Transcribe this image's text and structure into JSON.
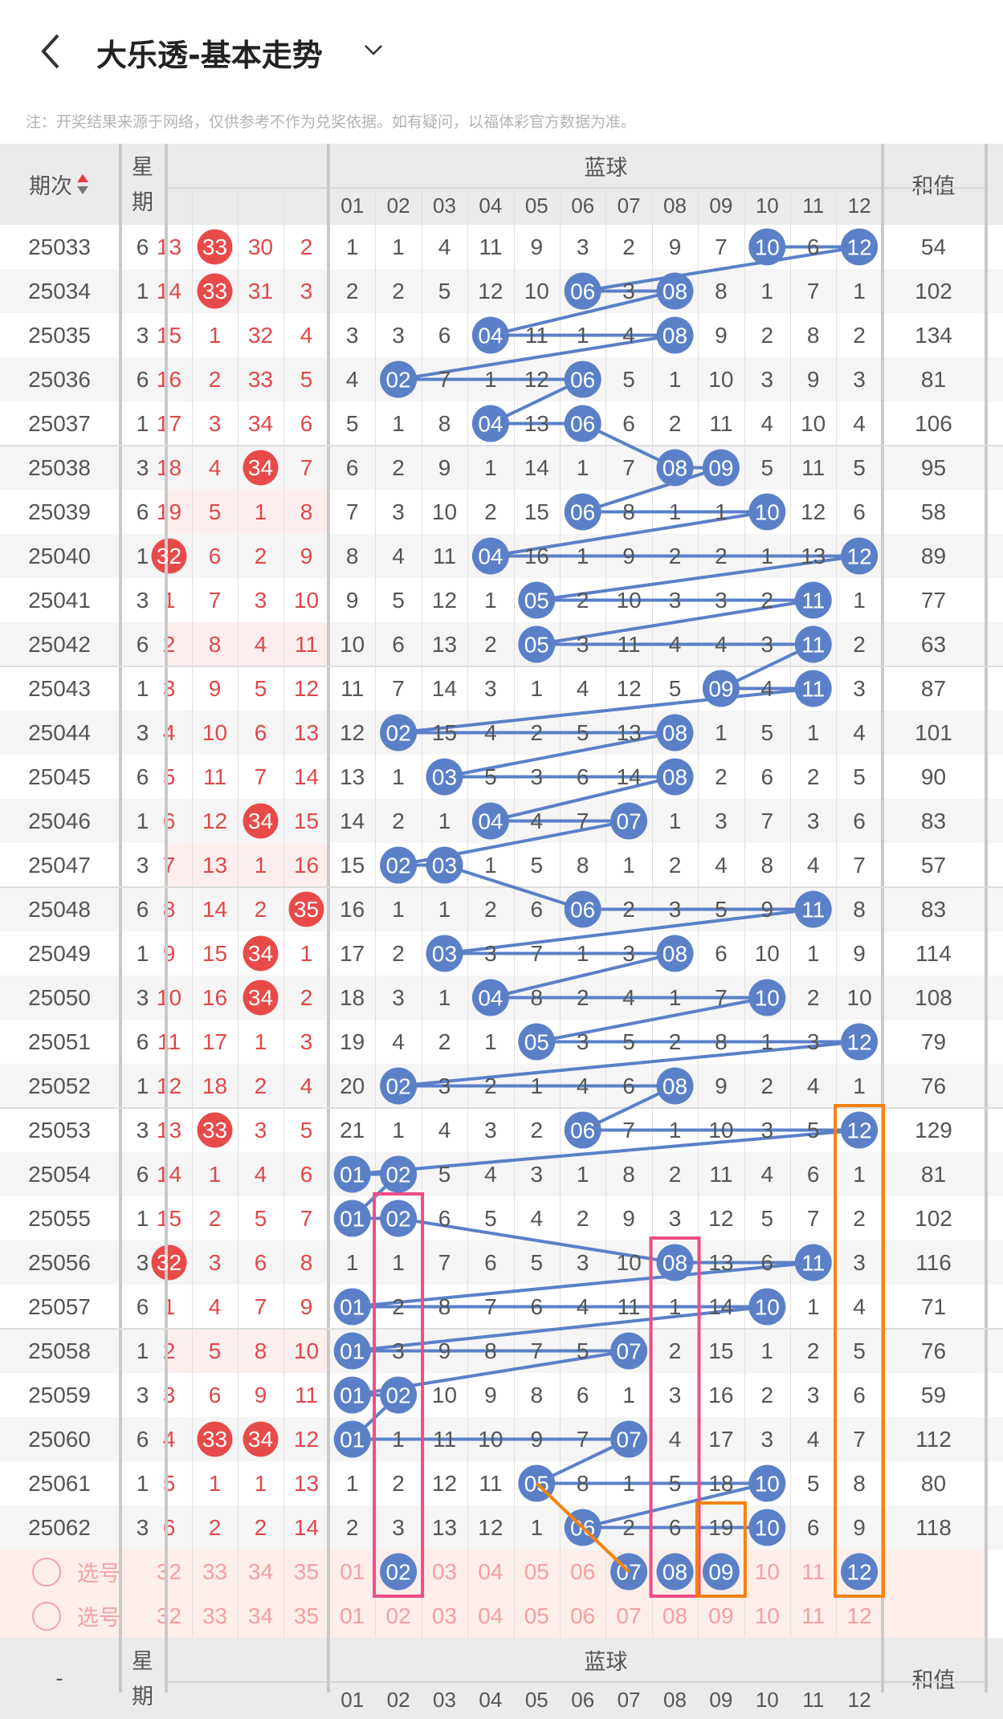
{
  "header": {
    "title": "大乐透-基本走势",
    "back_icon": "chevron-left-icon",
    "dropdown_icon": "chevron-down-icon"
  },
  "note": "注：开奖结果来源于网络，仅供参考不作为兑奖依据。如有疑问，以福体彩官方数据为准。",
  "table": {
    "col_issue": "期次",
    "col_weekday": "星期",
    "blue_group": "蓝球",
    "col_sum": "和值",
    "red_cols": [
      "32",
      "33",
      "34",
      "35"
    ],
    "blue_cols": [
      "01",
      "02",
      "03",
      "04",
      "05",
      "06",
      "07",
      "08",
      "09",
      "10",
      "11",
      "12"
    ],
    "bottom_issue_label": "-",
    "colors": {
      "red_ball": "#e84a4a",
      "blue_ball": "#5b80c8",
      "pink_box": "#ee4d86",
      "orange_box": "#f5820f"
    },
    "rows": [
      {
        "issue": "25033",
        "week": "6",
        "red": [
          "13",
          "33",
          "30",
          "2"
        ],
        "red_hits": [
          33
        ],
        "blue": [
          "1",
          "1",
          "4",
          "11",
          "9",
          "3",
          "2",
          "9",
          "7",
          "10",
          "6",
          "12"
        ],
        "blue_hits": [
          10,
          12
        ],
        "sum": "54"
      },
      {
        "issue": "25034",
        "week": "1",
        "red": [
          "14",
          "33",
          "31",
          "3"
        ],
        "red_hits": [
          33
        ],
        "blue": [
          "2",
          "2",
          "5",
          "12",
          "10",
          "06",
          "3",
          "08",
          "8",
          "1",
          "7",
          "1"
        ],
        "blue_hits": [
          6,
          8
        ],
        "sum": "102"
      },
      {
        "issue": "25035",
        "week": "3",
        "red": [
          "15",
          "1",
          "32",
          "4"
        ],
        "red_hits": [],
        "blue": [
          "3",
          "3",
          "6",
          "04",
          "11",
          "1",
          "4",
          "08",
          "9",
          "2",
          "8",
          "2"
        ],
        "blue_hits": [
          4,
          8
        ],
        "sum": "134"
      },
      {
        "issue": "25036",
        "week": "6",
        "red": [
          "16",
          "2",
          "33",
          "5"
        ],
        "red_hits": [],
        "blue": [
          "4",
          "02",
          "7",
          "1",
          "12",
          "06",
          "5",
          "1",
          "10",
          "3",
          "9",
          "3"
        ],
        "blue_hits": [
          2,
          6
        ],
        "sum": "81"
      },
      {
        "issue": "25037",
        "week": "1",
        "red": [
          "17",
          "3",
          "34",
          "6"
        ],
        "red_hits": [],
        "blue": [
          "5",
          "1",
          "8",
          "04",
          "13",
          "06",
          "6",
          "2",
          "11",
          "4",
          "10",
          "4"
        ],
        "blue_hits": [
          4,
          6
        ],
        "sum": "106"
      },
      {
        "issue": "25038",
        "week": "3",
        "red": [
          "18",
          "4",
          "34",
          "7"
        ],
        "red_hits": [
          34
        ],
        "blue": [
          "6",
          "2",
          "9",
          "1",
          "14",
          "1",
          "7",
          "08",
          "09",
          "5",
          "11",
          "5"
        ],
        "blue_hits": [
          8,
          9
        ],
        "sum": "95"
      },
      {
        "issue": "25039",
        "week": "6",
        "red": [
          "19",
          "5",
          "1",
          "8"
        ],
        "red_hits": [],
        "pink": true,
        "blue": [
          "7",
          "3",
          "10",
          "2",
          "15",
          "06",
          "8",
          "1",
          "1",
          "10",
          "12",
          "6"
        ],
        "blue_hits": [
          6,
          10
        ],
        "sum": "58"
      },
      {
        "issue": "25040",
        "week": "1",
        "red": [
          "32",
          "6",
          "2",
          "9"
        ],
        "red_hits": [
          32
        ],
        "blue": [
          "8",
          "4",
          "11",
          "04",
          "16",
          "1",
          "9",
          "2",
          "2",
          "1",
          "13",
          "12"
        ],
        "blue_hits": [
          4,
          12
        ],
        "sum": "89"
      },
      {
        "issue": "25041",
        "week": "3",
        "red": [
          "1",
          "7",
          "3",
          "10"
        ],
        "red_hits": [],
        "blue": [
          "9",
          "5",
          "12",
          "1",
          "05",
          "2",
          "10",
          "3",
          "3",
          "2",
          "11",
          "1"
        ],
        "blue_hits": [
          5,
          11
        ],
        "sum": "77"
      },
      {
        "issue": "25042",
        "week": "6",
        "red": [
          "2",
          "8",
          "4",
          "11"
        ],
        "red_hits": [],
        "pink": true,
        "blue": [
          "10",
          "6",
          "13",
          "2",
          "05",
          "3",
          "11",
          "4",
          "4",
          "3",
          "11",
          "2"
        ],
        "blue_hits": [
          5,
          11
        ],
        "sum": "63"
      },
      {
        "issue": "25043",
        "week": "1",
        "red": [
          "3",
          "9",
          "5",
          "12"
        ],
        "red_hits": [],
        "blue": [
          "11",
          "7",
          "14",
          "3",
          "1",
          "4",
          "12",
          "5",
          "09",
          "4",
          "11",
          "3"
        ],
        "blue_hits": [
          9,
          11
        ],
        "sum": "87"
      },
      {
        "issue": "25044",
        "week": "3",
        "red": [
          "4",
          "10",
          "6",
          "13"
        ],
        "red_hits": [],
        "blue": [
          "12",
          "02",
          "15",
          "4",
          "2",
          "5",
          "13",
          "08",
          "1",
          "5",
          "1",
          "4"
        ],
        "blue_hits": [
          2,
          8
        ],
        "sum": "101"
      },
      {
        "issue": "25045",
        "week": "6",
        "red": [
          "5",
          "11",
          "7",
          "14"
        ],
        "red_hits": [],
        "blue": [
          "13",
          "1",
          "03",
          "5",
          "3",
          "6",
          "14",
          "08",
          "2",
          "6",
          "2",
          "5"
        ],
        "blue_hits": [
          3,
          8
        ],
        "sum": "90"
      },
      {
        "issue": "25046",
        "week": "1",
        "red": [
          "6",
          "12",
          "34",
          "15"
        ],
        "red_hits": [
          34
        ],
        "blue": [
          "14",
          "2",
          "1",
          "04",
          "4",
          "7",
          "07",
          "1",
          "3",
          "7",
          "3",
          "6"
        ],
        "blue_hits": [
          4,
          7
        ],
        "sum": "83"
      },
      {
        "issue": "25047",
        "week": "3",
        "red": [
          "7",
          "13",
          "1",
          "16"
        ],
        "red_hits": [],
        "pink": true,
        "blue": [
          "15",
          "02",
          "03",
          "1",
          "5",
          "8",
          "1",
          "2",
          "4",
          "8",
          "4",
          "7"
        ],
        "blue_hits": [
          2,
          3
        ],
        "sum": "57"
      },
      {
        "issue": "25048",
        "week": "6",
        "red": [
          "8",
          "14",
          "2",
          "35"
        ],
        "red_hits": [
          35
        ],
        "blue": [
          "16",
          "1",
          "1",
          "2",
          "6",
          "06",
          "2",
          "3",
          "5",
          "9",
          "11",
          "8"
        ],
        "blue_hits": [
          6,
          11
        ],
        "sum": "83"
      },
      {
        "issue": "25049",
        "week": "1",
        "red": [
          "9",
          "15",
          "34",
          "1"
        ],
        "red_hits": [
          34
        ],
        "blue": [
          "17",
          "2",
          "03",
          "3",
          "7",
          "1",
          "3",
          "08",
          "6",
          "10",
          "1",
          "9"
        ],
        "blue_hits": [
          3,
          8
        ],
        "sum": "114"
      },
      {
        "issue": "25050",
        "week": "3",
        "red": [
          "10",
          "16",
          "34",
          "2"
        ],
        "red_hits": [
          34
        ],
        "blue": [
          "18",
          "3",
          "1",
          "04",
          "8",
          "2",
          "4",
          "1",
          "7",
          "10",
          "2",
          "10"
        ],
        "blue_hits": [
          4,
          10
        ],
        "sum": "108"
      },
      {
        "issue": "25051",
        "week": "6",
        "red": [
          "11",
          "17",
          "1",
          "3"
        ],
        "red_hits": [],
        "blue": [
          "19",
          "4",
          "2",
          "1",
          "05",
          "3",
          "5",
          "2",
          "8",
          "1",
          "3",
          "12"
        ],
        "blue_hits": [
          5,
          12
        ],
        "sum": "79"
      },
      {
        "issue": "25052",
        "week": "1",
        "red": [
          "12",
          "18",
          "2",
          "4"
        ],
        "red_hits": [],
        "blue": [
          "20",
          "02",
          "3",
          "2",
          "1",
          "4",
          "6",
          "08",
          "9",
          "2",
          "4",
          "1"
        ],
        "blue_hits": [
          2,
          8
        ],
        "sum": "76"
      },
      {
        "issue": "25053",
        "week": "3",
        "red": [
          "13",
          "33",
          "3",
          "5"
        ],
        "red_hits": [
          33
        ],
        "blue": [
          "21",
          "1",
          "4",
          "3",
          "2",
          "06",
          "7",
          "1",
          "10",
          "3",
          "5",
          "12"
        ],
        "blue_hits": [
          6,
          12
        ],
        "sum": "129"
      },
      {
        "issue": "25054",
        "week": "6",
        "red": [
          "14",
          "1",
          "4",
          "6"
        ],
        "red_hits": [],
        "blue": [
          "01",
          "02",
          "5",
          "4",
          "3",
          "1",
          "8",
          "2",
          "11",
          "4",
          "6",
          "1"
        ],
        "blue_hits": [
          1,
          2
        ],
        "sum": "81"
      },
      {
        "issue": "25055",
        "week": "1",
        "red": [
          "15",
          "2",
          "5",
          "7"
        ],
        "red_hits": [],
        "blue": [
          "01",
          "02",
          "6",
          "5",
          "4",
          "2",
          "9",
          "3",
          "12",
          "5",
          "7",
          "2"
        ],
        "blue_hits": [
          1,
          2
        ],
        "sum": "102"
      },
      {
        "issue": "25056",
        "week": "3",
        "red": [
          "32",
          "3",
          "6",
          "8"
        ],
        "red_hits": [
          32
        ],
        "blue": [
          "1",
          "1",
          "7",
          "6",
          "5",
          "3",
          "10",
          "08",
          "13",
          "6",
          "11",
          "3"
        ],
        "blue_hits": [
          8,
          11
        ],
        "sum": "116"
      },
      {
        "issue": "25057",
        "week": "6",
        "red": [
          "1",
          "4",
          "7",
          "9"
        ],
        "red_hits": [],
        "blue": [
          "01",
          "2",
          "8",
          "7",
          "6",
          "4",
          "11",
          "1",
          "14",
          "10",
          "1",
          "4"
        ],
        "blue_hits": [
          1,
          10
        ],
        "sum": "71"
      },
      {
        "issue": "25058",
        "week": "1",
        "red": [
          "2",
          "5",
          "8",
          "10"
        ],
        "red_hits": [],
        "pink": true,
        "blue": [
          "01",
          "3",
          "9",
          "8",
          "7",
          "5",
          "07",
          "2",
          "15",
          "1",
          "2",
          "5"
        ],
        "blue_hits": [
          1,
          7
        ],
        "sum": "76"
      },
      {
        "issue": "25059",
        "week": "3",
        "red": [
          "3",
          "6",
          "9",
          "11"
        ],
        "red_hits": [],
        "blue": [
          "01",
          "02",
          "10",
          "9",
          "8",
          "6",
          "1",
          "3",
          "16",
          "2",
          "3",
          "6"
        ],
        "blue_hits": [
          1,
          2
        ],
        "sum": "59"
      },
      {
        "issue": "25060",
        "week": "6",
        "red": [
          "4",
          "33",
          "34",
          "12"
        ],
        "red_hits": [
          33,
          34
        ],
        "blue": [
          "01",
          "1",
          "11",
          "10",
          "9",
          "7",
          "07",
          "4",
          "17",
          "3",
          "4",
          "7"
        ],
        "blue_hits": [
          1,
          7
        ],
        "sum": "112"
      },
      {
        "issue": "25061",
        "week": "1",
        "red": [
          "5",
          "1",
          "1",
          "13"
        ],
        "red_hits": [],
        "blue": [
          "1",
          "2",
          "12",
          "11",
          "05",
          "8",
          "1",
          "5",
          "18",
          "10",
          "5",
          "8"
        ],
        "blue_hits": [
          5,
          10
        ],
        "sum": "80"
      },
      {
        "issue": "25062",
        "week": "3",
        "red": [
          "6",
          "2",
          "2",
          "14"
        ],
        "red_hits": [],
        "blue": [
          "2",
          "3",
          "13",
          "12",
          "1",
          "06",
          "2",
          "6",
          "19",
          "10",
          "6",
          "9"
        ],
        "blue_hits": [
          6,
          10
        ],
        "sum": "118"
      }
    ],
    "select_rows": [
      {
        "label": "选号",
        "selected_blue": [
          2,
          7,
          8,
          9,
          12
        ]
      },
      {
        "label": "选号",
        "selected_blue": []
      }
    ]
  }
}
